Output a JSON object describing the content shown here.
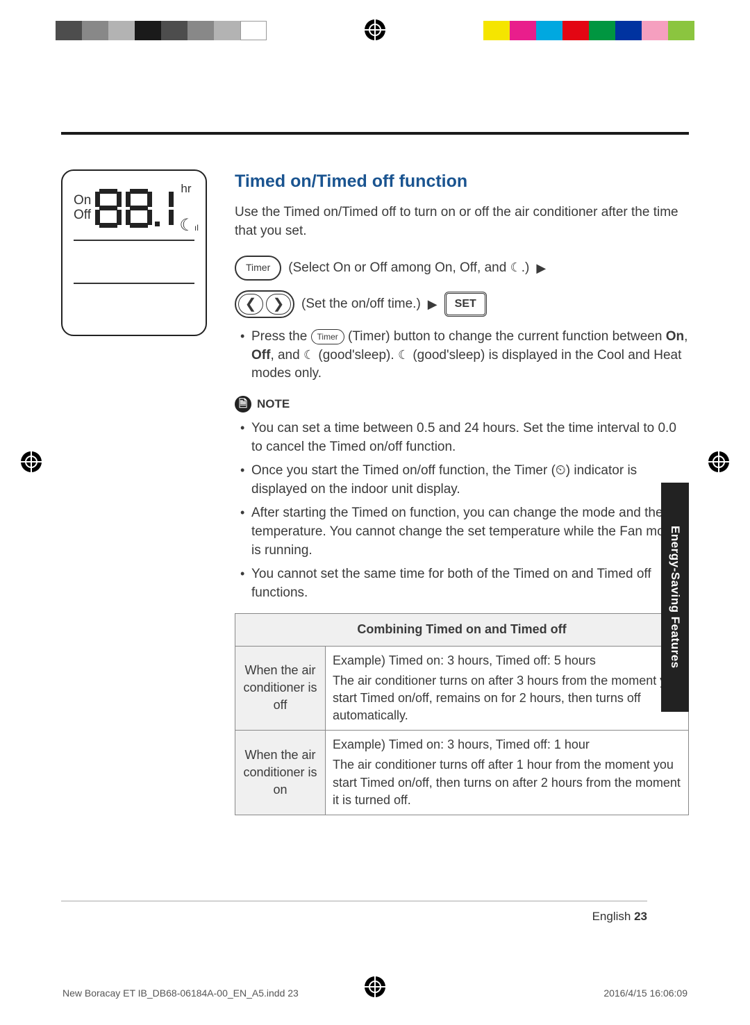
{
  "colorbar_left": [
    "#4d4d4d",
    "#888888",
    "#b3b3b3",
    "#1a1a1a",
    "#4d4d4d",
    "#888888",
    "#b3b3b3",
    "#ffffff"
  ],
  "colorbar_right": [
    "#f5e500",
    "#e91e8c",
    "#00a8e0",
    "#e30613",
    "#009640",
    "#0033a0",
    "#f59fbf",
    "#8bc53f"
  ],
  "lcd": {
    "on": "On",
    "off": "Off",
    "hr": "hr"
  },
  "title": "Timed on/Timed off function",
  "intro": "Use the Timed on/Timed off to turn on or off the air conditioner after the time that you set.",
  "step1": {
    "btn": "Timer",
    "text": "(Select On or Off among On, Off, and ",
    "text_end": ".)"
  },
  "step2": {
    "text": "(Set the on/off time.)",
    "set": "SET"
  },
  "press_a": "Press the ",
  "press_btn": "Timer",
  "press_b": " (Timer) button to change the current function between ",
  "on_b": "On",
  "off_b": "Off",
  "press_c": ", and ",
  "press_d": " (good'sleep). ",
  "press_e": " (good'sleep) is displayed in the Cool and Heat modes only.",
  "note_label": "NOTE",
  "notes": [
    "You can set a time between 0.5 and 24 hours. Set the time interval to 0.0 to cancel the Timed on/off function.",
    "Once you start the Timed on/off function, the Timer (⏲) indicator is displayed on the indoor unit display.",
    "After starting the Timed on function, you can change the mode and the set temperature. You cannot change the set temperature while the Fan mode is running.",
    "You cannot set the same time for both of the Timed on and Timed off functions."
  ],
  "table": {
    "header": "Combining Timed on and Timed off",
    "rows": [
      {
        "head": "When the air conditioner is off",
        "ex": "Example) Timed on: 3 hours, Timed off: 5 hours",
        "body": "The air conditioner turns on after 3 hours from the moment you start Timed on/off, remains on for 2 hours, then turns off automatically."
      },
      {
        "head": "When the air conditioner is on",
        "ex": "Example) Timed on: 3 hours, Timed off: 1 hour",
        "body": "The air conditioner turns off after 1 hour from the moment you start Timed on/off, then turns on after 2 hours from the moment it is turned off."
      }
    ]
  },
  "side_tab": "Energy-Saving Features",
  "footer_lang": "English",
  "footer_page": "23",
  "print_file": "New Boracay ET IB_DB68-06184A-00_EN_A5.indd   23",
  "print_date": "2016/4/15   16:06:09"
}
